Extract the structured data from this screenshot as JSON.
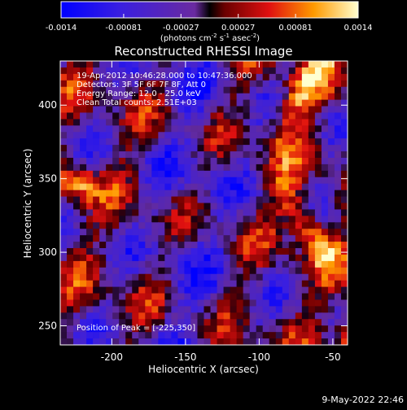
{
  "chart_data": {
    "type": "heatmap",
    "title": "Reconstructed RHESSI Image",
    "xlabel": "Heliocentric X (arcsec)",
    "ylabel": "Heliocentric Y (arcsec)",
    "x_ticks": [
      "-200",
      "-150",
      "-100",
      "-50"
    ],
    "x_tick_values": [
      -200,
      -150,
      -100,
      -50
    ],
    "y_ticks": [
      "250",
      "300",
      "350",
      "400"
    ],
    "y_tick_values": [
      250,
      300,
      350,
      400
    ],
    "xlim": [
      -235,
      -40
    ],
    "ylim": [
      237,
      430
    ],
    "colorbar": {
      "ticks": [
        "-0.0014",
        "-0.00081",
        "-0.00027",
        "0.00027",
        "0.00081",
        "0.0014"
      ],
      "tick_values": [
        -0.0014,
        -0.00081,
        -0.00027,
        0.00027,
        0.00081,
        0.0014
      ],
      "range": [
        -0.0014,
        0.0014
      ],
      "units_base": "(photons cm",
      "units_exp1": "-2",
      "units_mid": " s",
      "units_exp2": "-1",
      "units_asec": " asec",
      "units_exp3": "-2",
      "units_close": ")"
    },
    "annotations": [
      "19-Apr-2012 10:46:28.000 to 10:47:36.000",
      "Detectors: 3F 5F 6F 7F 8F, Att 0",
      "Energy Range: 12.0 - 25.0 keV",
      "Clean      Total counts: 2.51E+03"
    ],
    "peak_label": "Position of Peak = [-225,350]",
    "colors": {
      "background": "#000000",
      "text": "#ffffff"
    }
  },
  "footer": {
    "date": "9-May-2022 22:46"
  }
}
